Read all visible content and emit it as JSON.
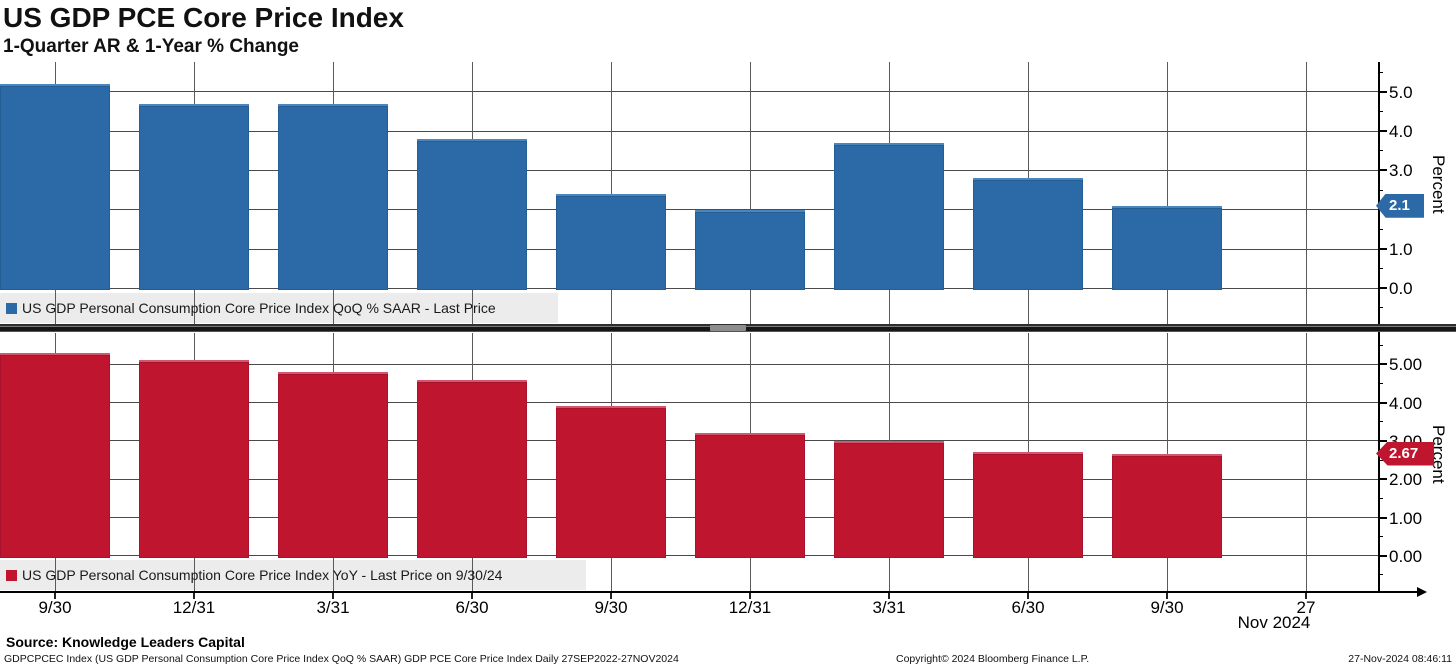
{
  "header": {
    "title": "US GDP PCE Core Price Index",
    "subtitle": "1-Quarter AR & 1-Year % Change"
  },
  "chart_data": [
    {
      "type": "bar",
      "panel": "top",
      "legend_label": "US GDP Personal Consumption Core Price Index QoQ % SAAR - Last Price",
      "bar_color": "#2b6aa6",
      "bar_highlight": "#4b86bd",
      "categories": [
        "9/30/22",
        "12/31/22",
        "3/31/23",
        "6/30/23",
        "9/30/23",
        "12/31/23",
        "3/31/24",
        "6/30/24",
        "9/30/24"
      ],
      "values": [
        5.2,
        4.7,
        4.7,
        3.8,
        2.4,
        2.0,
        3.7,
        2.8,
        2.1
      ],
      "last_price": "2.1",
      "ylabel": "Percent",
      "ytick_values": [
        5,
        4,
        3,
        2,
        1,
        0
      ],
      "ytick_labels": [
        "5.0",
        "4.0",
        "3.0",
        "2.0",
        "1.0",
        "0.0"
      ],
      "ylim": [
        -0.95,
        5.75
      ],
      "grid": true,
      "legend_position": "bottom-left"
    },
    {
      "type": "bar",
      "panel": "bottom",
      "legend_label": "US GDP Personal Consumption Core Price Index YoY - Last Price on 9/30/24",
      "bar_color": "#c0152f",
      "bar_highlight": "#d4566c",
      "categories": [
        "9/30/22",
        "12/31/22",
        "3/31/23",
        "6/30/23",
        "9/30/23",
        "12/31/23",
        "3/31/24",
        "6/30/24",
        "9/30/24"
      ],
      "values": [
        5.3,
        5.1,
        4.8,
        4.6,
        3.9,
        3.2,
        3.0,
        2.7,
        2.67
      ],
      "last_price": "2.67",
      "ylabel": "Percent",
      "ytick_values": [
        5,
        4,
        3,
        2,
        1,
        0
      ],
      "ytick_labels": [
        "5.00",
        "4.00",
        "3.00",
        "2.00",
        "1.00",
        "0.00"
      ],
      "ylim": [
        -0.95,
        5.78
      ],
      "grid": true,
      "legend_position": "bottom-left"
    }
  ],
  "x_axis": {
    "tick_labels": [
      "9/30",
      "12/31",
      "3/31",
      "6/30",
      "9/30",
      "12/31",
      "3/31",
      "6/30",
      "9/30",
      "27"
    ],
    "period_label": "Nov 2024"
  },
  "footer": {
    "source": "Source: Knowledge Leaders Capital",
    "description": "GDPCPCEC Index (US GDP Personal Consumption Core Price Index QoQ % SAAR) GDP PCE Core Price Index  Daily 27SEP2022-27NOV2024",
    "copyright": "Copyright© 2024 Bloomberg Finance L.P.",
    "timestamp": "27-Nov-2024 08:46:11"
  },
  "colors": {
    "grid": "#4a4a4a",
    "axis": "#000000",
    "legend_bg": "#ececec",
    "background": "#ffffff"
  }
}
